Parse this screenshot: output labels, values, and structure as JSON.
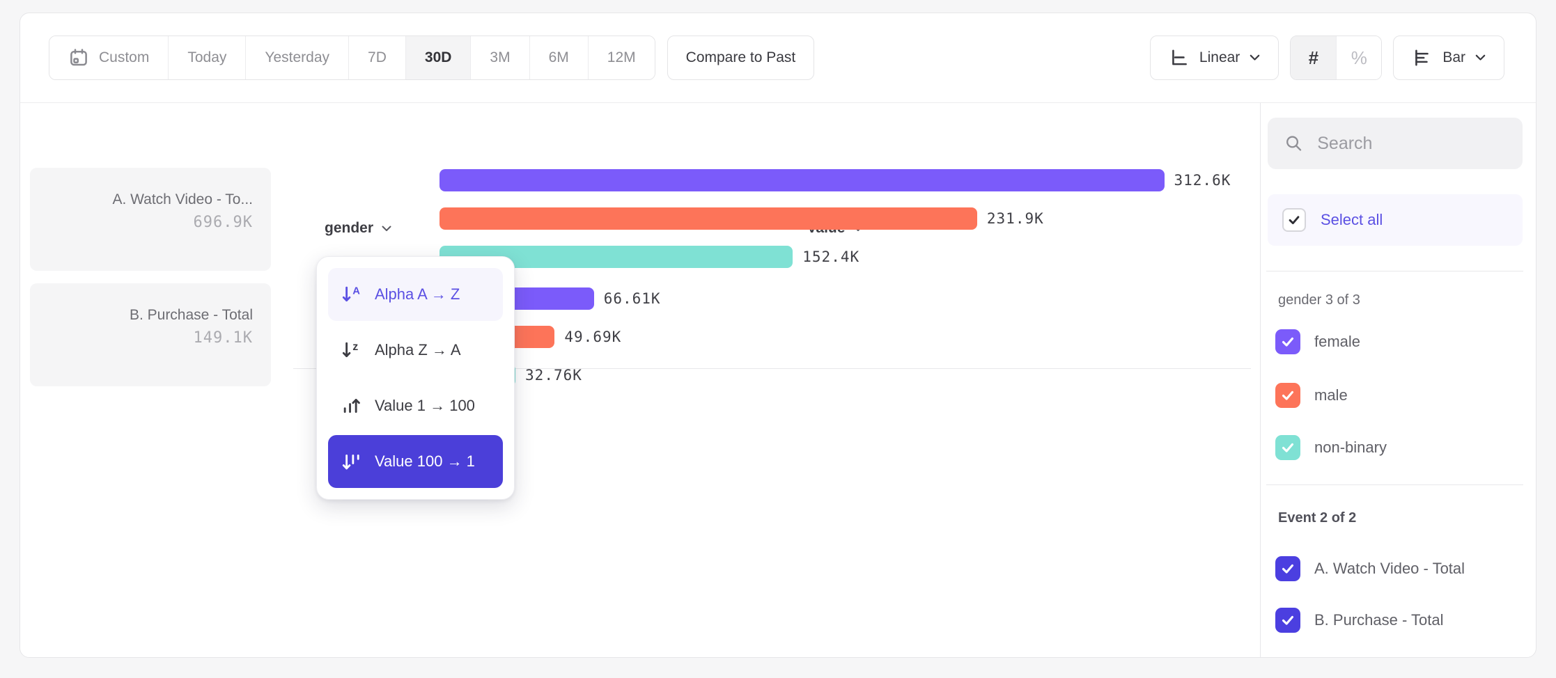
{
  "toolbar": {
    "date_ranges": {
      "custom": "Custom",
      "today": "Today",
      "yesterday": "Yesterday",
      "d7": "7D",
      "d30": "30D",
      "m3": "3M",
      "m6": "6M",
      "m12": "12M",
      "active": "30D"
    },
    "compare_label": "Compare to Past",
    "scale_label": "Linear",
    "number_format": {
      "count": "#",
      "percent": "%",
      "active": "#"
    },
    "chart_type_label": "Bar"
  },
  "chart": {
    "headers": {
      "event": "Event",
      "breakdown": "gender",
      "value": "Value"
    },
    "event_cards": [
      {
        "title": "A. Watch Video - To...",
        "total": "696.9K"
      },
      {
        "title": "B. Purchase - Total",
        "total": "149.1K"
      }
    ]
  },
  "sort_menu": {
    "items": [
      {
        "label": "Alpha A → Z",
        "state": "hover"
      },
      {
        "label": "Alpha Z → A",
        "state": "default"
      },
      {
        "label": "Value 1 → 100",
        "state": "default"
      },
      {
        "label": "Value 100 → 1",
        "state": "selected"
      }
    ]
  },
  "sidebar": {
    "search_placeholder": "Search",
    "select_all_label": "Select all",
    "gender_section": {
      "label": "gender 3 of 3",
      "items": [
        {
          "label": "female",
          "color": "#7b5bfa",
          "checked": true
        },
        {
          "label": "male",
          "color": "#fd7459",
          "checked": true
        },
        {
          "label": "non-binary",
          "color": "#7fe1d4",
          "checked": true
        }
      ]
    },
    "event_section": {
      "label": "Event 2 of 2",
      "items": [
        {
          "label": "A. Watch Video - Total",
          "color": "#4b3fe0",
          "checked": true
        },
        {
          "label": "B. Purchase - Total",
          "color": "#4b3fe0",
          "checked": true
        }
      ]
    }
  },
  "chart_data": {
    "type": "bar",
    "orientation": "horizontal",
    "sort_order": "Value 100 → 1",
    "axis_max": 350000,
    "value_unit": "K",
    "color_map": {
      "female": "#7b5bfa",
      "male": "#fd7459",
      "non-binary": "#7fe1d4"
    },
    "groups": [
      {
        "event": "A. Watch Video - Total",
        "total": 696900,
        "total_label": "696.9K",
        "values": [
          {
            "gender": "female",
            "value": 312600,
            "label": "312.6K"
          },
          {
            "gender": "male",
            "value": 231900,
            "label": "231.9K"
          },
          {
            "gender": "non-binary",
            "value": 152400,
            "label": "152.4K"
          }
        ]
      },
      {
        "event": "B. Purchase - Total",
        "total": 149100,
        "total_label": "149.1K",
        "values": [
          {
            "gender": "female",
            "value": 66610,
            "label": "66.61K"
          },
          {
            "gender": "male",
            "value": 49690,
            "label": "49.69K"
          },
          {
            "gender": "non-binary",
            "value": 32760,
            "label": "32.76K"
          }
        ]
      }
    ]
  },
  "colors": {
    "accent": "#4b3fd9",
    "bar_female": "#7b5bfa",
    "bar_male": "#fd7459",
    "bar_nonbinary": "#7fe1d4",
    "menu_hover_bg": "#f6f5fd",
    "menu_hover_text": "#5b50e3"
  }
}
